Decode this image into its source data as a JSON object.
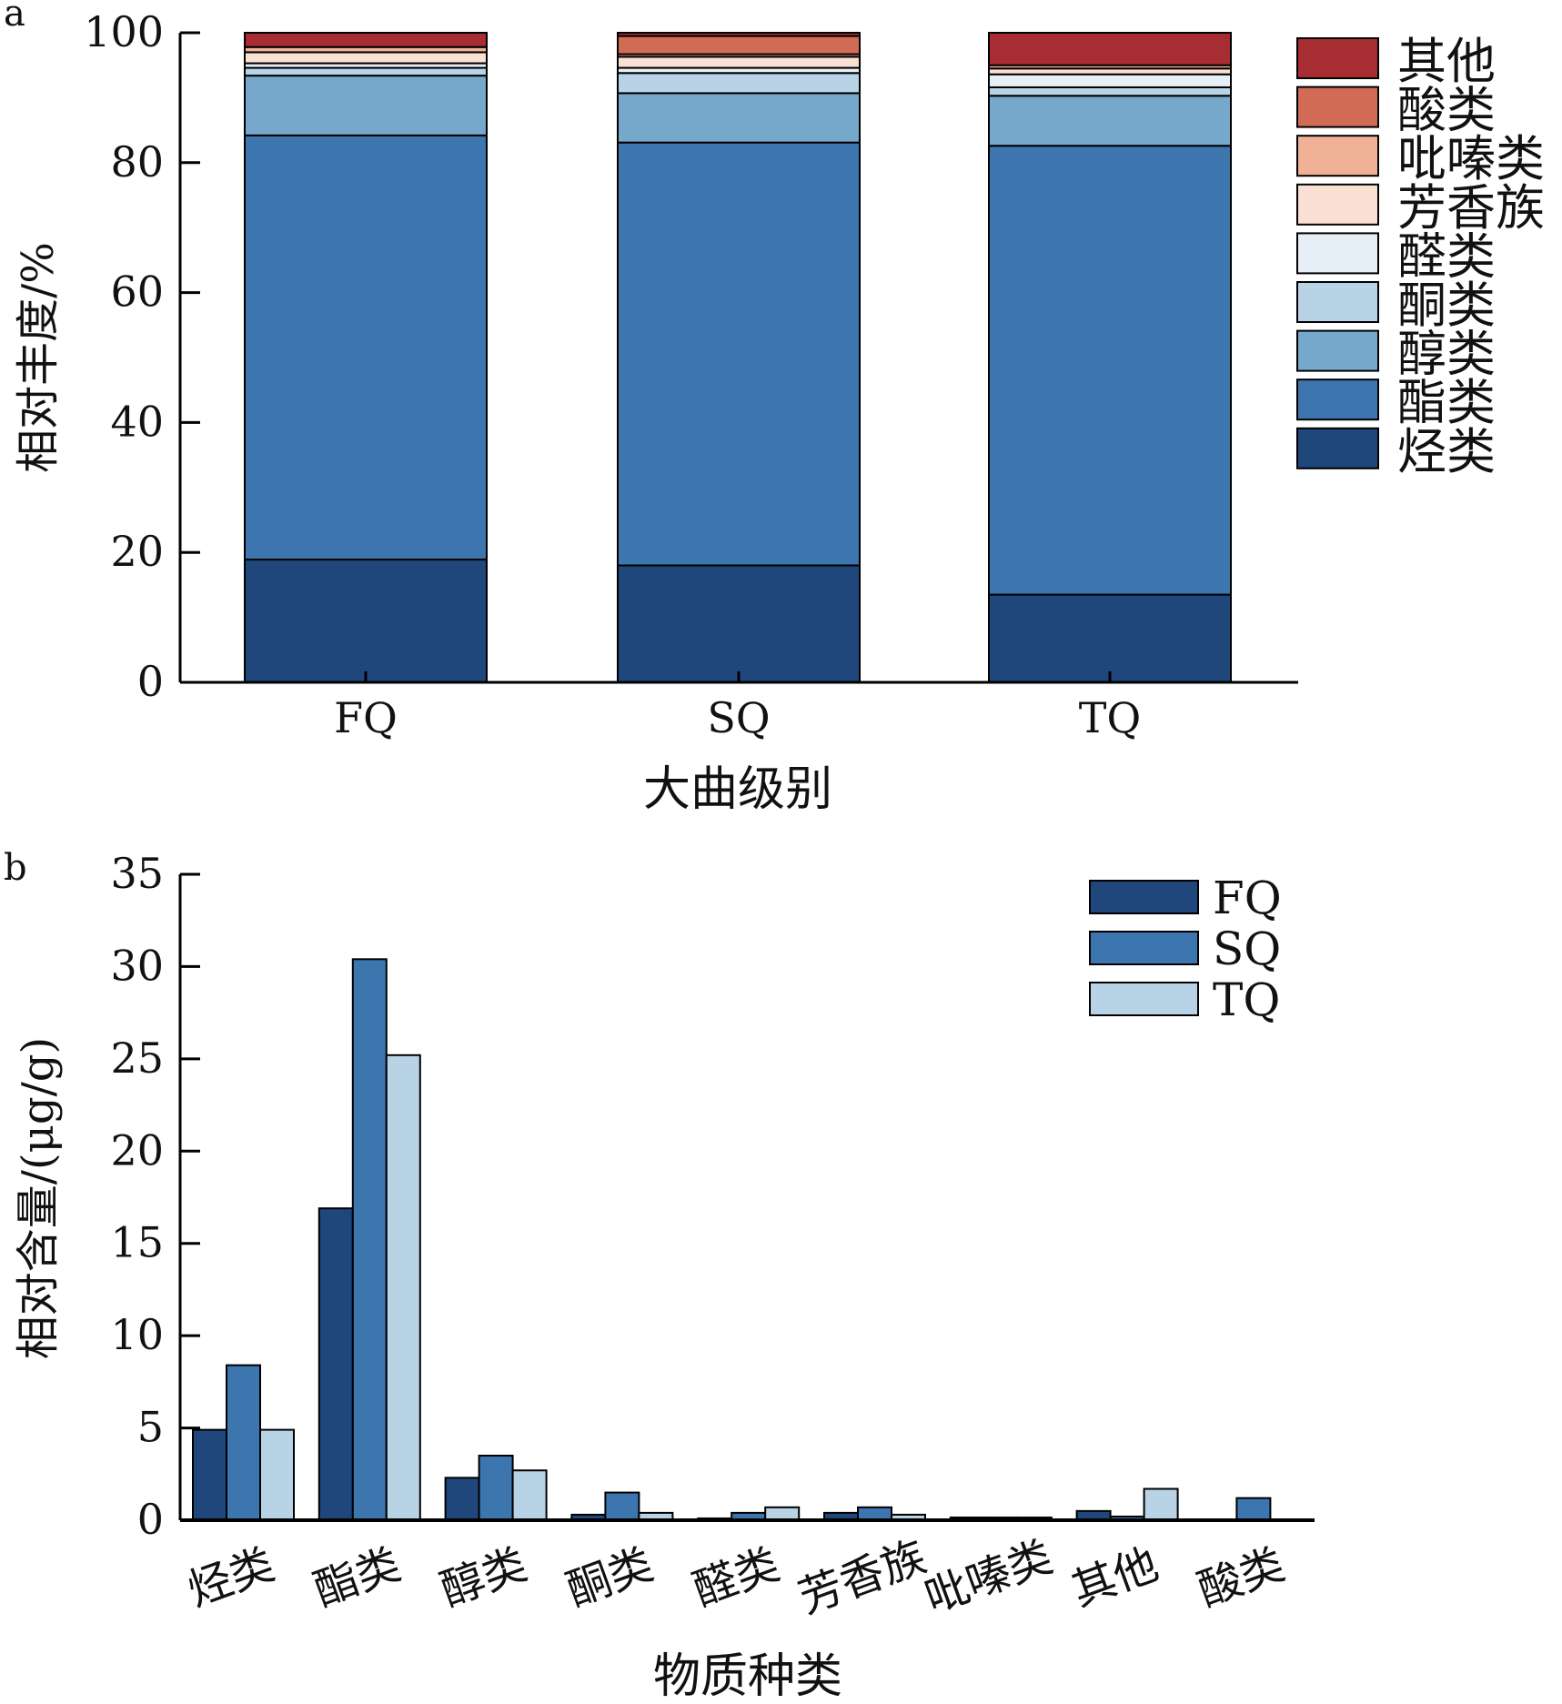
{
  "chart_data": [
    {
      "panel_label": "a",
      "type": "bar",
      "stacked": true,
      "xlabel": "大曲级别",
      "ylabel": "相对丰度/%",
      "ylim": [
        0,
        100
      ],
      "yticks": [
        0,
        20,
        40,
        60,
        80,
        100
      ],
      "categories": [
        "FQ",
        "SQ",
        "TQ"
      ],
      "legend_position": "right",
      "series": [
        {
          "name": "烃类",
          "color": "#1f477b",
          "values": [
            18.9,
            18.0,
            13.5
          ]
        },
        {
          "name": "酯类",
          "color": "#3d75ae",
          "values": [
            65.3,
            65.1,
            69.1
          ]
        },
        {
          "name": "醇类",
          "color": "#76a8cb",
          "values": [
            9.2,
            7.6,
            7.7
          ]
        },
        {
          "name": "酮类",
          "color": "#b8d3e6",
          "values": [
            1.2,
            3.1,
            1.3
          ]
        },
        {
          "name": "醛类",
          "color": "#e6eef6",
          "values": [
            0.7,
            0.8,
            2.0
          ]
        },
        {
          "name": "芳香族",
          "color": "#f9e0d3",
          "values": [
            1.7,
            1.7,
            0.9
          ]
        },
        {
          "name": "吡嗪类",
          "color": "#f0b197",
          "values": [
            0.8,
            0.4,
            0.5
          ]
        },
        {
          "name": "酸类",
          "color": "#d26b55",
          "values": [
            0,
            2.8,
            0
          ]
        },
        {
          "name": "其他",
          "color": "#a82d33",
          "values": [
            2.2,
            0.5,
            5.0
          ]
        }
      ]
    },
    {
      "panel_label": "b",
      "type": "bar",
      "stacked": false,
      "xlabel": "物质种类",
      "ylabel": "相对含量/(μg/g)",
      "ylim": [
        0,
        35
      ],
      "yticks": [
        0,
        5,
        10,
        15,
        20,
        25,
        30,
        35
      ],
      "categories": [
        "烃类",
        "酯类",
        "醇类",
        "酮类",
        "醛类",
        "芳香族",
        "吡嗪类",
        "其他",
        "酸类"
      ],
      "legend_position": "top-right",
      "series": [
        {
          "name": "FQ",
          "color": "#1f477b",
          "values": [
            4.9,
            16.9,
            2.3,
            0.3,
            0.1,
            0.4,
            0.15,
            0.5,
            0
          ]
        },
        {
          "name": "SQ",
          "color": "#3d75ae",
          "values": [
            8.4,
            30.4,
            3.5,
            1.5,
            0.4,
            0.7,
            0.15,
            0.2,
            1.2
          ]
        },
        {
          "name": "TQ",
          "color": "#b8d3e6",
          "values": [
            4.9,
            25.2,
            2.7,
            0.4,
            0.7,
            0.3,
            0.15,
            1.7,
            0
          ]
        }
      ]
    }
  ]
}
